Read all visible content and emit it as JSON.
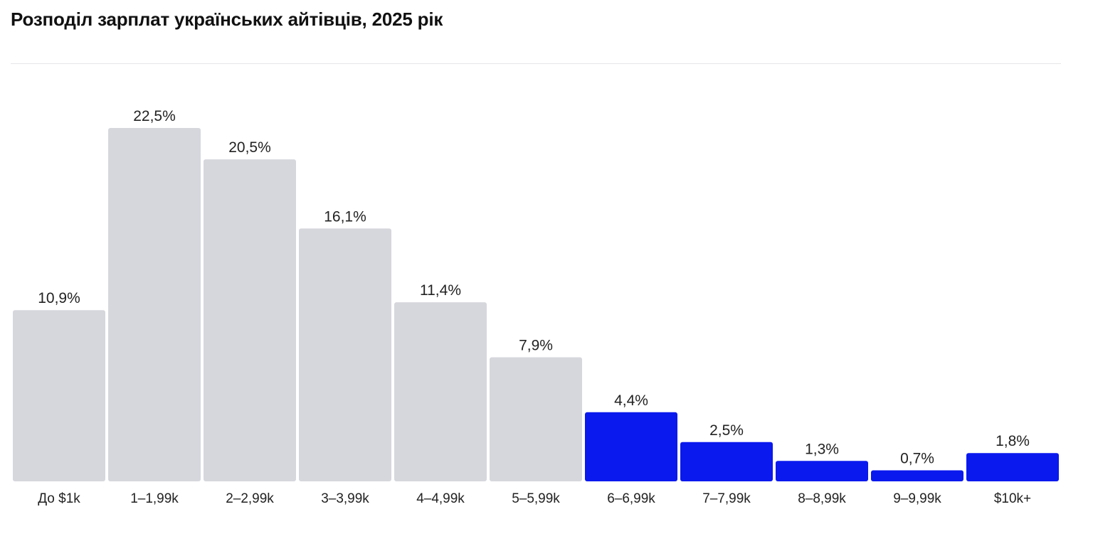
{
  "chart_data": {
    "type": "bar",
    "title": "Розподіл зарплат українських айтівців, 2025 рік",
    "xlabel": "",
    "ylabel": "",
    "ylim": [
      0,
      22.5
    ],
    "grid": false,
    "legend": "none",
    "categories": [
      "До $1k",
      "1–1,99k",
      "2–2,99k",
      "3–3,99k",
      "4–4,99k",
      "5–5,99k",
      "6–6,99k",
      "7–7,99k",
      "8–8,99k",
      "9–9,99k",
      "$10k+"
    ],
    "values": [
      10.9,
      22.5,
      20.5,
      16.1,
      11.4,
      7.9,
      4.4,
      2.5,
      1.3,
      0.7,
      1.8
    ],
    "value_labels": [
      "10,9%",
      "22,5%",
      "20,5%",
      "16,1%",
      "11,4%",
      "7,9%",
      "4,4%",
      "2,5%",
      "1,3%",
      "0,7%",
      "1,8%"
    ],
    "highlight_from_index": 6,
    "colors": {
      "base": "#d6d7dd",
      "highlight": "#0a19ee",
      "text": "#222222"
    }
  }
}
